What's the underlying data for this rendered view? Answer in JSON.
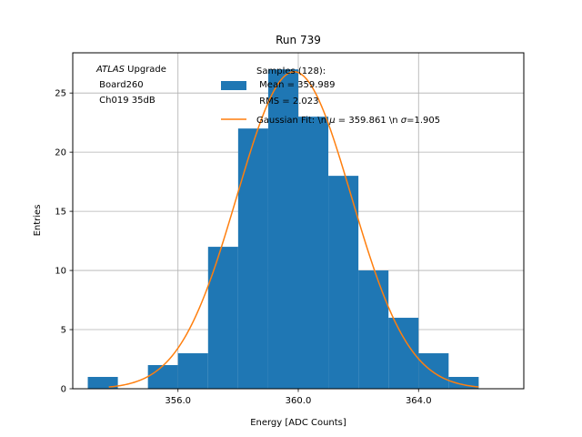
{
  "chart_data": {
    "type": "bar",
    "title": "Run 739",
    "xlabel": "Energy [ADC Counts]",
    "ylabel": "Entries",
    "xlim": [
      352.5,
      367.5
    ],
    "ylim": [
      0,
      28.4
    ],
    "grid": true,
    "xticks": [
      356.0,
      360.0,
      364.0
    ],
    "xtick_labels": [
      "356.0",
      "360.0",
      "364.0"
    ],
    "yticks": [
      0,
      5,
      10,
      15,
      20,
      25
    ],
    "ytick_labels": [
      "0",
      "5",
      "10",
      "15",
      "20",
      "25"
    ],
    "histogram": {
      "bin_edges": [
        353,
        354,
        355,
        356,
        357,
        358,
        359,
        360,
        361,
        362,
        363,
        364,
        365,
        366
      ],
      "counts": [
        1,
        0,
        2,
        3,
        12,
        22,
        27,
        23,
        18,
        10,
        6,
        3,
        1
      ],
      "color": "#1f77b4"
    },
    "fit": {
      "type": "gaussian",
      "mu": 359.861,
      "sigma": 1.905,
      "peak": 26.8,
      "x_range": [
        353.7,
        366.0
      ],
      "color": "#ff7f0e"
    },
    "annotation": {
      "italic": "ATLAS",
      "line1_rest": " Upgrade",
      "line2": " Board260",
      "line3": " Ch019 35dB"
    },
    "legend": {
      "position": "upper center",
      "hist_lines": [
        "Samples (128):",
        " Mean = 359.989",
        " RMS = 2.023"
      ],
      "fit_label_start": "Gaussian Fit: \\n ",
      "fit_mu_symbol": "μ",
      "fit_label_mid": " = 359.861 \\n ",
      "fit_sigma_symbol": "σ",
      "fit_label_end": "=1.905"
    }
  }
}
